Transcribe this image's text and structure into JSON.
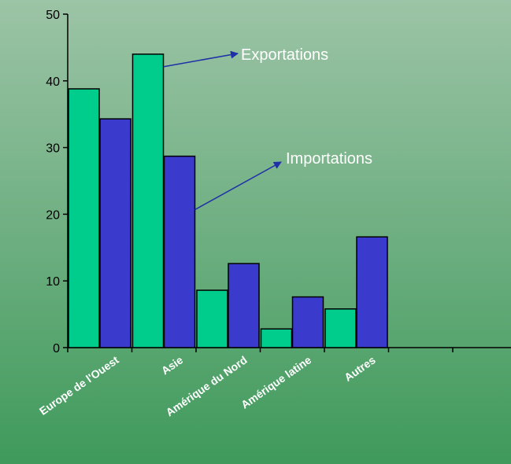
{
  "chart_data": {
    "type": "bar",
    "title": "",
    "xlabel": "",
    "ylabel": "",
    "categories": [
      "Europe de l'Ouest",
      "Asie",
      "Amérique du Nord",
      "Amérique latine",
      "Autres",
      "",
      ""
    ],
    "series": [
      {
        "name": "Exportations",
        "color": "#00cc8c",
        "values": [
          38.8,
          44,
          8.6,
          2.8,
          5.8,
          null,
          null
        ]
      },
      {
        "name": "Importations",
        "color": "#3a3acc",
        "values": [
          34.3,
          28.7,
          12.6,
          7.6,
          16.6,
          null,
          null
        ]
      }
    ],
    "yticks": [
      0,
      10,
      20,
      30,
      40,
      50
    ],
    "ylim": [
      0,
      50
    ],
    "grid": false,
    "annotations": [
      {
        "text": "Exportations",
        "series": "Exportations"
      },
      {
        "text": "Importations",
        "series": "Importations"
      }
    ]
  }
}
